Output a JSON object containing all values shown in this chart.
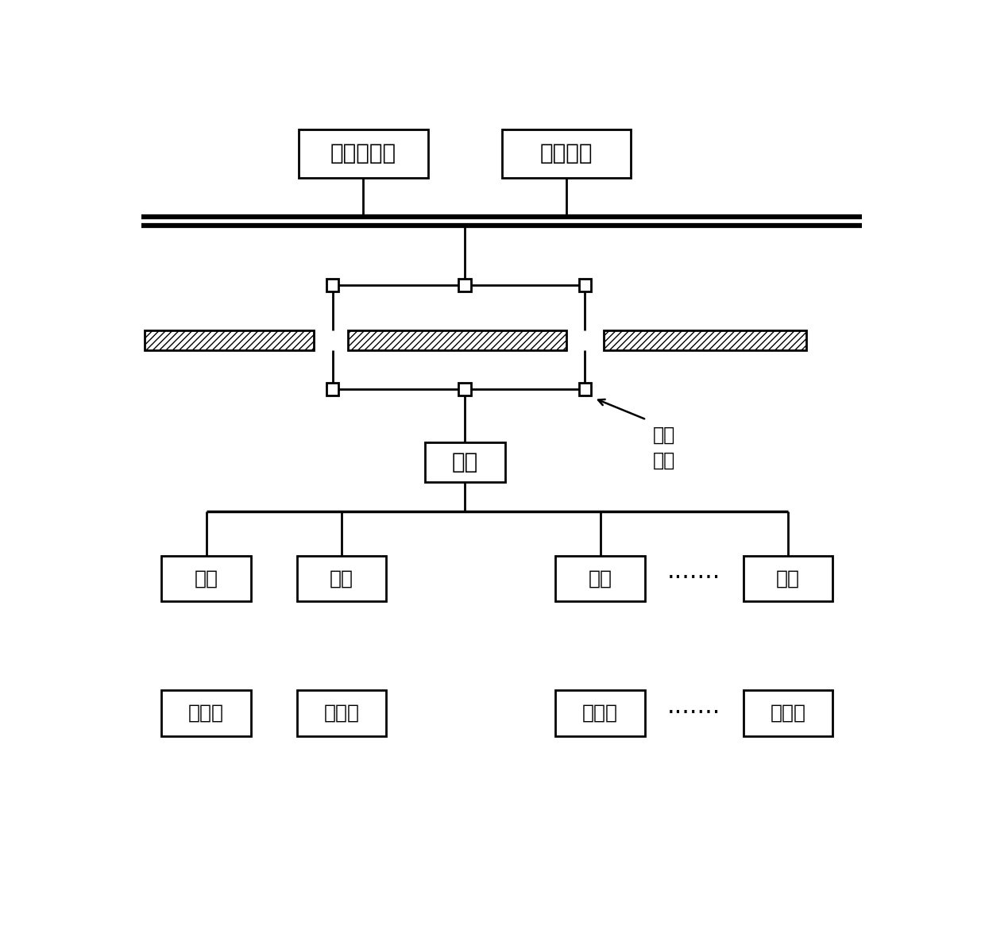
{
  "bg_color": "#ffffff",
  "line_color": "#000000",
  "box_color": "#ffffff",
  "text_color": "#000000",
  "backup_computer_label": "备用工控机",
  "main_computer_label": "主工控机",
  "master_station_label": "主站",
  "sub_station_label": "分站",
  "belt_machine_label": "胶带机",
  "ethernet_label": "以太\n环网",
  "dots_label": "·······",
  "font_size_big": 20,
  "font_size_small": 18,
  "font_size_dots": 22,
  "font_size_annot": 17
}
